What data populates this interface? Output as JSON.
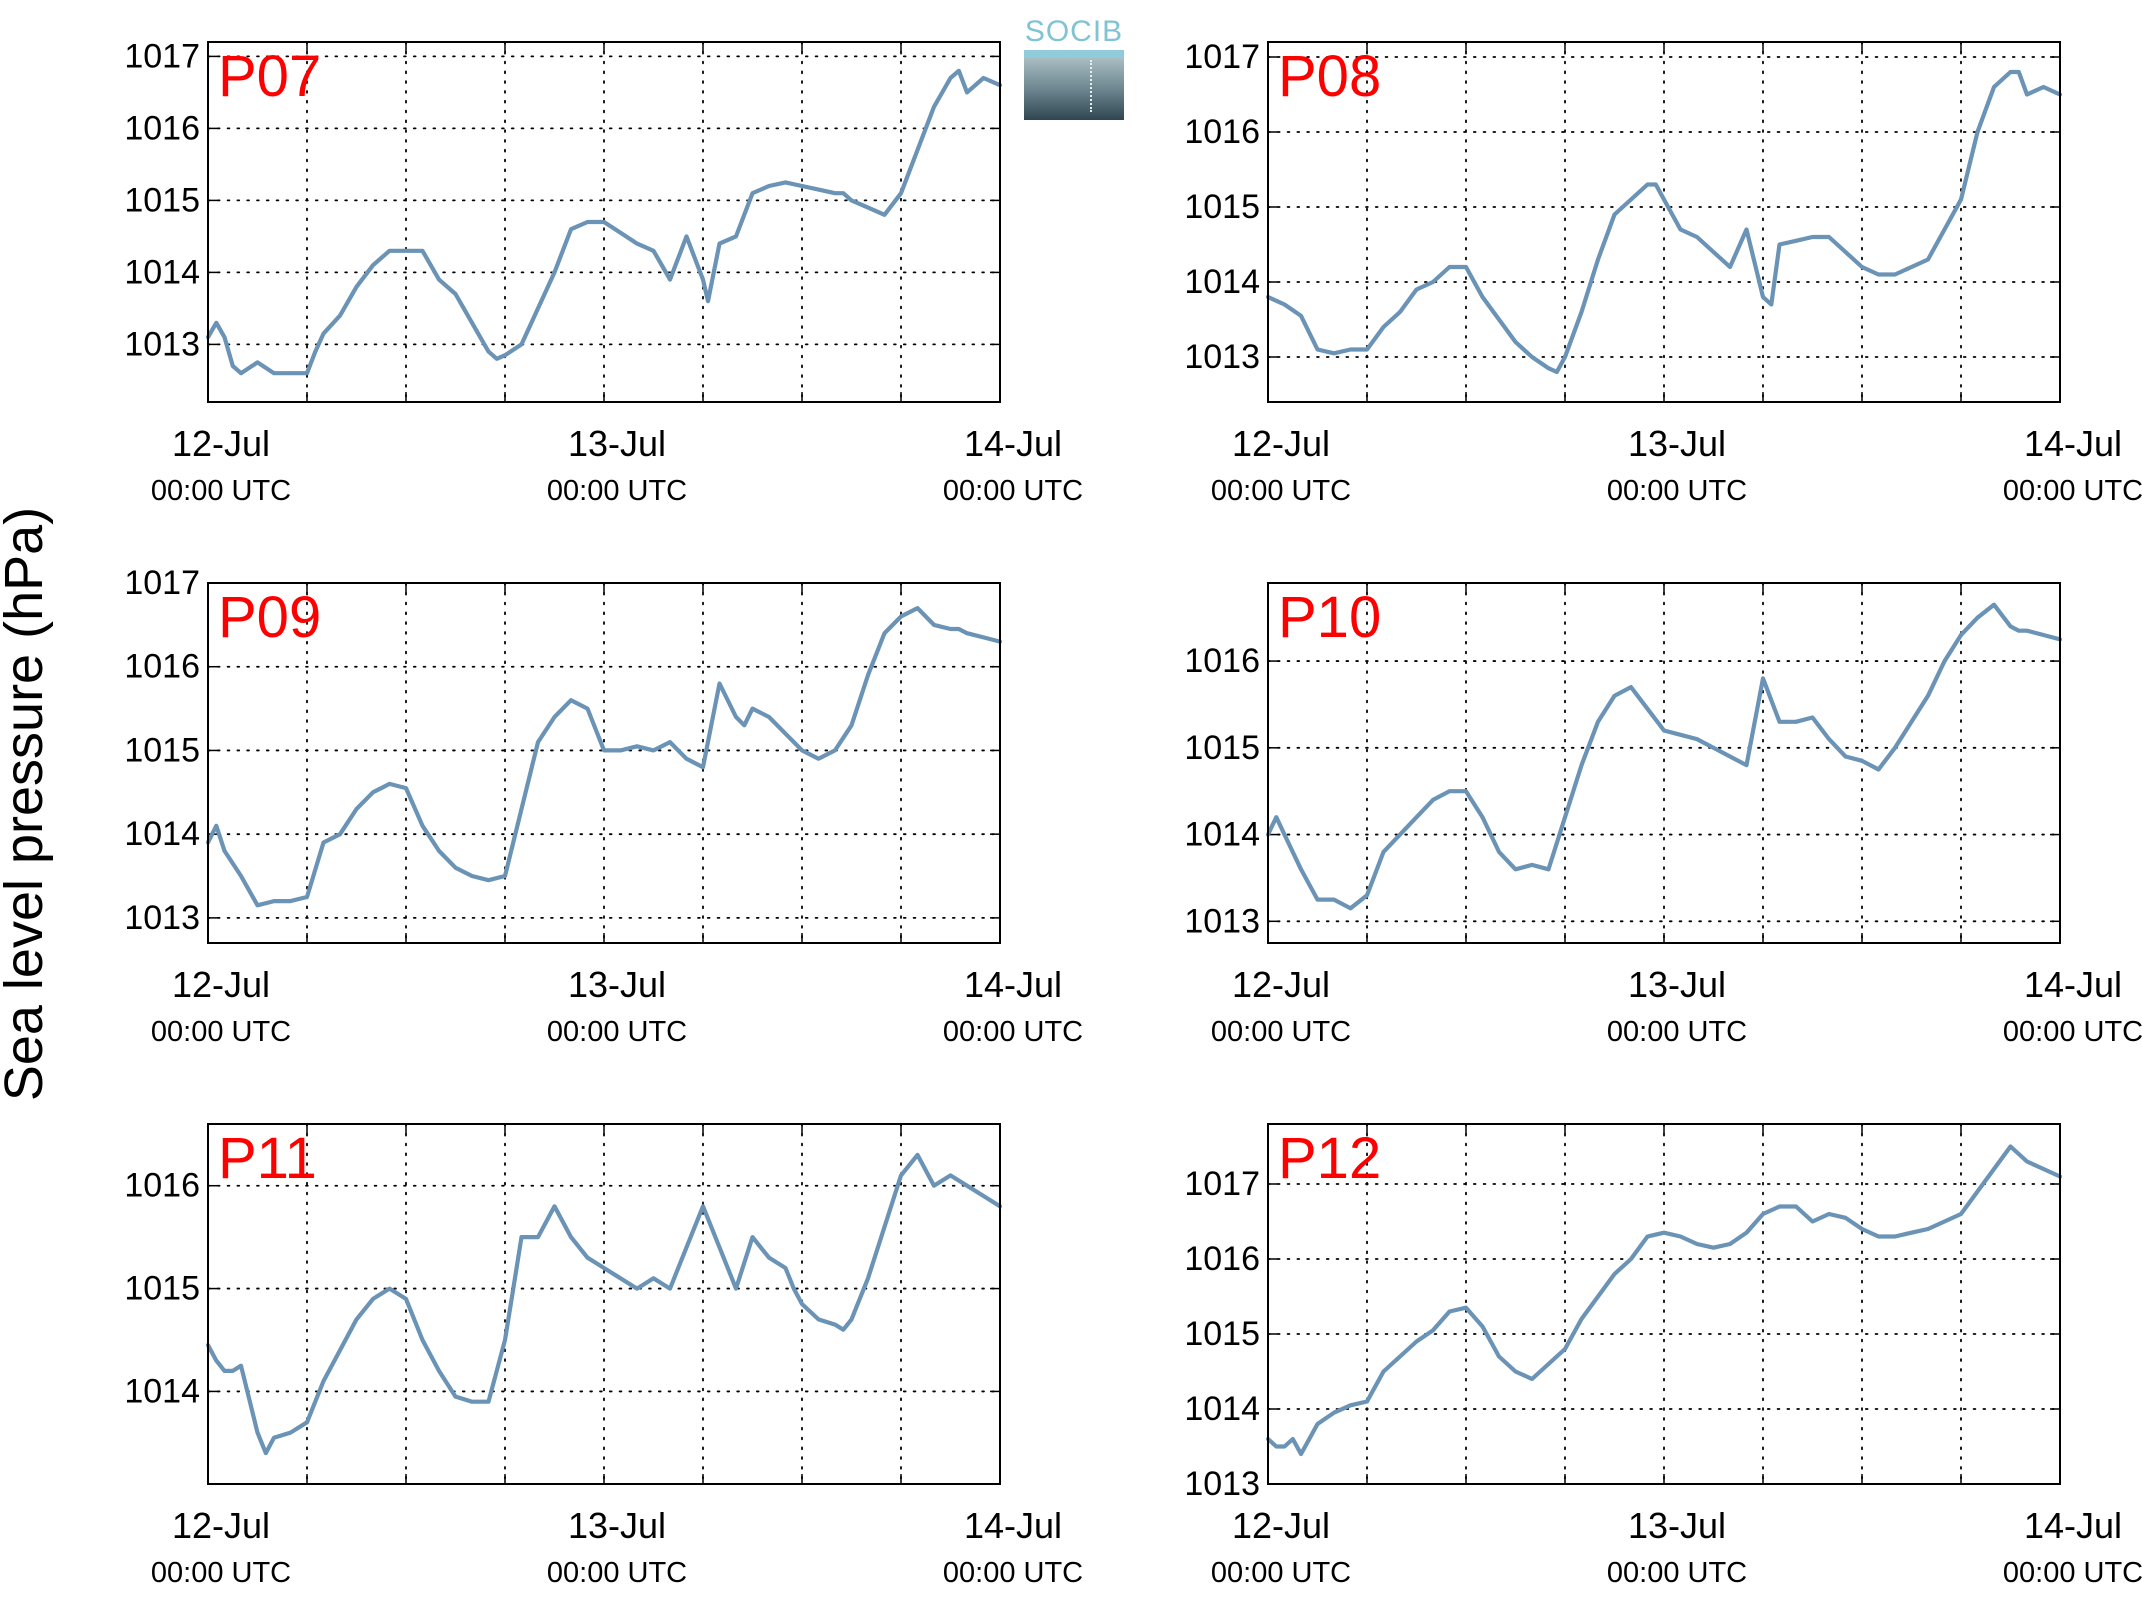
{
  "figure": {
    "ylabel": "Sea level pressure (hPa)",
    "logo_text": "SOCIB",
    "line_color": "#6a93b6",
    "label_color": "#ff0000"
  },
  "chart_data": [
    {
      "type": "line",
      "panel_label": "P07",
      "xlim": [
        0,
        48
      ],
      "ylim": [
        1012.2,
        1017.2
      ],
      "xticks": [
        0,
        24,
        48
      ],
      "xticklabels": [
        [
          "12-Jul",
          "00:00 UTC"
        ],
        [
          "13-Jul",
          "00:00 UTC"
        ],
        [
          "14-Jul",
          "00:00 UTC"
        ]
      ],
      "x_gridlines": [
        0,
        6,
        12,
        18,
        24,
        30,
        36,
        42,
        48
      ],
      "yticks": [
        1013,
        1014,
        1015,
        1016,
        1017
      ],
      "grid": true,
      "x": [
        0,
        0.5,
        1,
        1.5,
        2,
        3,
        4,
        5,
        6,
        6.5,
        7,
        8,
        9,
        10,
        11,
        12,
        13,
        14,
        15,
        16,
        17,
        17.5,
        18,
        19,
        20,
        21,
        22,
        23,
        24,
        25,
        26,
        27,
        27.5,
        28,
        29,
        30,
        30.3,
        31,
        32,
        33,
        34,
        35,
        36,
        37,
        38,
        38.5,
        39,
        40,
        41,
        42,
        43,
        44,
        45,
        45.5,
        46,
        47,
        48
      ],
      "y": [
        1013.1,
        1013.3,
        1013.1,
        1012.7,
        1012.6,
        1012.75,
        1012.6,
        1012.6,
        1012.6,
        1012.9,
        1013.15,
        1013.4,
        1013.8,
        1014.1,
        1014.3,
        1014.3,
        1014.3,
        1013.9,
        1013.7,
        1013.3,
        1012.9,
        1012.8,
        1012.85,
        1013.0,
        1013.5,
        1014.0,
        1014.6,
        1014.7,
        1014.7,
        1014.55,
        1014.4,
        1014.3,
        1014.1,
        1013.9,
        1014.5,
        1013.9,
        1013.6,
        1014.4,
        1014.5,
        1015.1,
        1015.2,
        1015.25,
        1015.2,
        1015.15,
        1015.1,
        1015.1,
        1015.0,
        1014.9,
        1014.8,
        1015.1,
        1015.7,
        1016.3,
        1016.7,
        1016.8,
        1016.5,
        1016.7,
        1016.6
      ]
    },
    {
      "type": "line",
      "panel_label": "P08",
      "xlim": [
        0,
        48
      ],
      "ylim": [
        1012.4,
        1017.2
      ],
      "xticks": [
        0,
        24,
        48
      ],
      "xticklabels": [
        [
          "12-Jul",
          "00:00 UTC"
        ],
        [
          "13-Jul",
          "00:00 UTC"
        ],
        [
          "14-Jul",
          "00:00 UTC"
        ]
      ],
      "x_gridlines": [
        0,
        6,
        12,
        18,
        24,
        30,
        36,
        42,
        48
      ],
      "yticks": [
        1013,
        1014,
        1015,
        1016,
        1017
      ],
      "grid": true,
      "x": [
        0,
        1,
        2,
        3,
        4,
        5,
        6,
        7,
        8,
        9,
        10,
        11,
        12,
        13,
        14,
        15,
        16,
        17,
        17.5,
        18,
        19,
        20,
        21,
        22,
        23,
        23.5,
        24,
        25,
        26,
        27,
        28,
        29,
        30,
        30.5,
        31,
        32,
        33,
        34,
        35,
        36,
        37,
        38,
        39,
        40,
        41,
        42,
        43,
        44,
        45,
        45.5,
        46,
        47,
        48
      ],
      "y": [
        1013.8,
        1013.7,
        1013.55,
        1013.1,
        1013.05,
        1013.1,
        1013.1,
        1013.4,
        1013.6,
        1013.9,
        1014.0,
        1014.2,
        1014.2,
        1013.8,
        1013.5,
        1013.2,
        1013.0,
        1012.85,
        1012.8,
        1013.0,
        1013.6,
        1014.3,
        1014.9,
        1015.1,
        1015.3,
        1015.3,
        1015.1,
        1014.7,
        1014.6,
        1014.4,
        1014.2,
        1014.7,
        1013.8,
        1013.7,
        1014.5,
        1014.55,
        1014.6,
        1014.6,
        1014.4,
        1014.2,
        1014.1,
        1014.1,
        1014.2,
        1014.3,
        1014.7,
        1015.1,
        1016.0,
        1016.6,
        1016.8,
        1016.8,
        1016.5,
        1016.6,
        1016.5
      ]
    },
    {
      "type": "line",
      "panel_label": "P09",
      "xlim": [
        0,
        48
      ],
      "ylim": [
        1012.7,
        1017.0
      ],
      "xticks": [
        0,
        24,
        48
      ],
      "xticklabels": [
        [
          "12-Jul",
          "00:00 UTC"
        ],
        [
          "13-Jul",
          "00:00 UTC"
        ],
        [
          "14-Jul",
          "00:00 UTC"
        ]
      ],
      "x_gridlines": [
        0,
        6,
        12,
        18,
        24,
        30,
        36,
        42,
        48
      ],
      "yticks": [
        1013,
        1014,
        1015,
        1016,
        1017
      ],
      "grid": true,
      "x": [
        0,
        0.5,
        1,
        2,
        3,
        4,
        5,
        6,
        7,
        8,
        9,
        10,
        11,
        12,
        13,
        14,
        15,
        16,
        17,
        18,
        19,
        20,
        21,
        22,
        23,
        24,
        25,
        26,
        27,
        28,
        29,
        30,
        31,
        32,
        32.5,
        33,
        34,
        35,
        36,
        37,
        38,
        39,
        40,
        41,
        42,
        43,
        44,
        45,
        45.5,
        46,
        47,
        48
      ],
      "y": [
        1013.9,
        1014.1,
        1013.8,
        1013.5,
        1013.15,
        1013.2,
        1013.2,
        1013.25,
        1013.9,
        1014.0,
        1014.3,
        1014.5,
        1014.6,
        1014.55,
        1014.1,
        1013.8,
        1013.6,
        1013.5,
        1013.45,
        1013.5,
        1014.3,
        1015.1,
        1015.4,
        1015.6,
        1015.5,
        1015.0,
        1015.0,
        1015.05,
        1015.0,
        1015.1,
        1014.9,
        1014.8,
        1015.8,
        1015.4,
        1015.3,
        1015.5,
        1015.4,
        1015.2,
        1015.0,
        1014.9,
        1015.0,
        1015.3,
        1015.9,
        1016.4,
        1016.6,
        1016.7,
        1016.5,
        1016.45,
        1016.45,
        1016.4,
        1016.35,
        1016.3
      ]
    },
    {
      "type": "line",
      "panel_label": "P10",
      "xlim": [
        0,
        48
      ],
      "ylim": [
        1012.75,
        1016.9
      ],
      "xticks": [
        0,
        24,
        48
      ],
      "xticklabels": [
        [
          "12-Jul",
          "00:00 UTC"
        ],
        [
          "13-Jul",
          "00:00 UTC"
        ],
        [
          "14-Jul",
          "00:00 UTC"
        ]
      ],
      "x_gridlines": [
        0,
        6,
        12,
        18,
        24,
        30,
        36,
        42,
        48
      ],
      "yticks": [
        1013,
        1014,
        1015,
        1016
      ],
      "grid": true,
      "x": [
        0,
        0.5,
        1,
        2,
        3,
        4,
        5,
        6,
        7,
        8,
        9,
        10,
        11,
        12,
        13,
        14,
        15,
        16,
        17,
        18,
        19,
        20,
        21,
        22,
        23,
        24,
        25,
        26,
        27,
        28,
        29,
        30,
        31,
        32,
        33,
        34,
        35,
        36,
        37,
        38,
        39,
        40,
        41,
        42,
        43,
        44,
        45,
        45.5,
        46,
        47,
        48
      ],
      "y": [
        1014.0,
        1014.2,
        1014.0,
        1013.6,
        1013.25,
        1013.25,
        1013.15,
        1013.3,
        1013.8,
        1014.0,
        1014.2,
        1014.4,
        1014.5,
        1014.5,
        1014.2,
        1013.8,
        1013.6,
        1013.65,
        1013.6,
        1014.2,
        1014.8,
        1015.3,
        1015.6,
        1015.7,
        1015.45,
        1015.2,
        1015.15,
        1015.1,
        1015.0,
        1014.9,
        1014.8,
        1015.8,
        1015.3,
        1015.3,
        1015.35,
        1015.1,
        1014.9,
        1014.85,
        1014.75,
        1015.0,
        1015.3,
        1015.6,
        1016.0,
        1016.3,
        1016.5,
        1016.65,
        1016.4,
        1016.35,
        1016.35,
        1016.3,
        1016.25
      ]
    },
    {
      "type": "line",
      "panel_label": "P11",
      "xlim": [
        0,
        48
      ],
      "ylim": [
        1013.1,
        1016.6
      ],
      "xticks": [
        0,
        24,
        48
      ],
      "xticklabels": [
        [
          "12-Jul",
          "00:00 UTC"
        ],
        [
          "13-Jul",
          "00:00 UTC"
        ],
        [
          "14-Jul",
          "00:00 UTC"
        ]
      ],
      "x_gridlines": [
        0,
        6,
        12,
        18,
        24,
        30,
        36,
        42,
        48
      ],
      "yticks": [
        1014,
        1015,
        1016
      ],
      "grid": true,
      "x": [
        0,
        0.5,
        1,
        1.5,
        2,
        3,
        3.5,
        4,
        5,
        6,
        7,
        8,
        9,
        10,
        11,
        12,
        13,
        14,
        15,
        16,
        17,
        18,
        18.5,
        19,
        20,
        21,
        22,
        23,
        24,
        25,
        26,
        27,
        28,
        29,
        30,
        31,
        32,
        33,
        34,
        35,
        35.5,
        36,
        37,
        38,
        38.5,
        39,
        40,
        41,
        42,
        43,
        44,
        45,
        46,
        47,
        48
      ],
      "y": [
        1014.45,
        1014.3,
        1014.2,
        1014.2,
        1014.25,
        1013.6,
        1013.4,
        1013.55,
        1013.6,
        1013.7,
        1014.1,
        1014.4,
        1014.7,
        1014.9,
        1015.0,
        1014.9,
        1014.5,
        1014.2,
        1013.95,
        1013.9,
        1013.9,
        1014.5,
        1015.0,
        1015.5,
        1015.5,
        1015.8,
        1015.5,
        1015.3,
        1015.2,
        1015.1,
        1015.0,
        1015.1,
        1015.0,
        1015.4,
        1015.8,
        1015.4,
        1015.0,
        1015.5,
        1015.3,
        1015.2,
        1015.0,
        1014.85,
        1014.7,
        1014.65,
        1014.6,
        1014.7,
        1015.1,
        1015.6,
        1016.1,
        1016.3,
        1016.0,
        1016.1,
        1016.0,
        1015.9,
        1015.8
      ]
    },
    {
      "type": "line",
      "panel_label": "P12",
      "xlim": [
        0,
        48
      ],
      "ylim": [
        1013.0,
        1017.8
      ],
      "xticks": [
        0,
        24,
        48
      ],
      "xticklabels": [
        [
          "12-Jul",
          "00:00 UTC"
        ],
        [
          "13-Jul",
          "00:00 UTC"
        ],
        [
          "14-Jul",
          "00:00 UTC"
        ]
      ],
      "x_gridlines": [
        0,
        6,
        12,
        18,
        24,
        30,
        36,
        42,
        48
      ],
      "yticks": [
        1013,
        1014,
        1015,
        1016,
        1017
      ],
      "grid": true,
      "x": [
        0,
        0.5,
        1,
        1.5,
        2,
        2.5,
        3,
        4,
        5,
        6,
        7,
        8,
        9,
        10,
        11,
        12,
        13,
        14,
        15,
        16,
        17,
        18,
        19,
        20,
        21,
        22,
        23,
        24,
        25,
        26,
        27,
        28,
        29,
        30,
        31,
        32,
        33,
        34,
        35,
        36,
        37,
        38,
        39,
        40,
        41,
        42,
        43,
        44,
        45,
        46,
        47,
        48
      ],
      "y": [
        1013.6,
        1013.5,
        1013.5,
        1013.6,
        1013.4,
        1013.6,
        1013.8,
        1013.95,
        1014.05,
        1014.1,
        1014.5,
        1014.7,
        1014.9,
        1015.05,
        1015.3,
        1015.35,
        1015.1,
        1014.7,
        1014.5,
        1014.4,
        1014.6,
        1014.8,
        1015.2,
        1015.5,
        1015.8,
        1016.0,
        1016.3,
        1016.35,
        1016.3,
        1016.2,
        1016.15,
        1016.2,
        1016.35,
        1016.6,
        1016.7,
        1016.7,
        1016.5,
        1016.6,
        1016.55,
        1016.4,
        1016.3,
        1016.3,
        1016.35,
        1016.4,
        1016.5,
        1016.6,
        1016.9,
        1017.2,
        1017.5,
        1017.3,
        1017.2,
        1017.1
      ]
    }
  ]
}
